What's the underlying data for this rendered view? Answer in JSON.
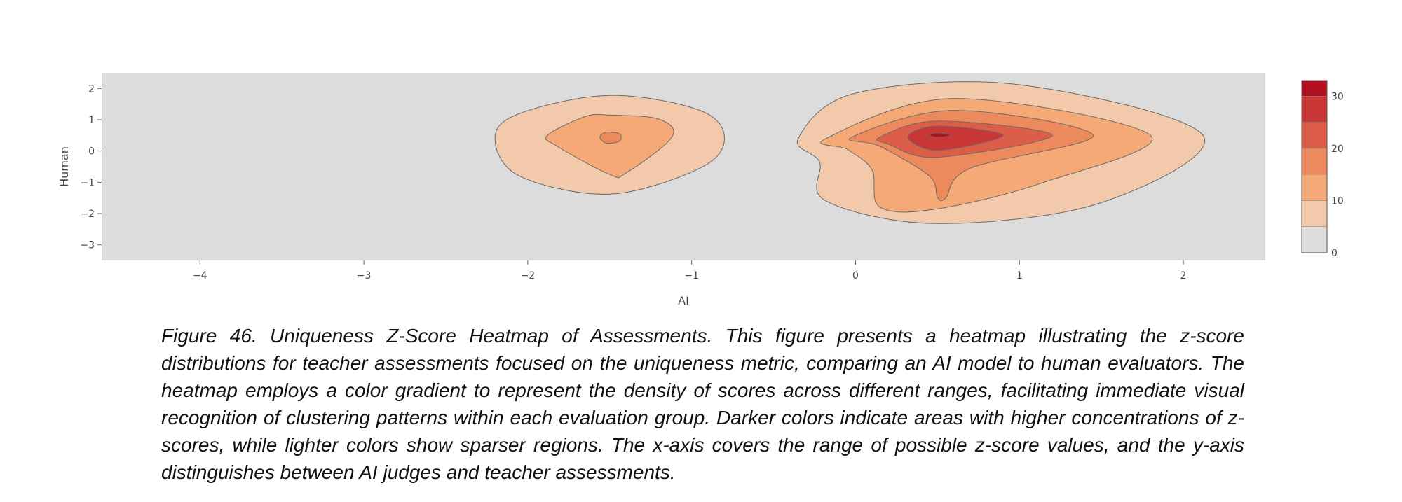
{
  "chart_data": {
    "type": "heatmap",
    "subtype": "density-contour",
    "xlabel": "AI",
    "ylabel": "Human",
    "xlim": [
      -4.6,
      2.5
    ],
    "ylim": [
      -3.5,
      2.5
    ],
    "x_ticks": [
      -4,
      -3,
      -2,
      -1,
      0,
      1,
      2
    ],
    "y_ticks": [
      2,
      1,
      0,
      -1,
      -2,
      -3
    ],
    "x_tick_labels": [
      "−4",
      "−3",
      "−2",
      "−1",
      "0",
      "1",
      "2"
    ],
    "y_tick_labels": [
      "2",
      "1",
      "0",
      "−1",
      "−2",
      "−3"
    ],
    "colorscale": {
      "range": [
        0,
        33
      ],
      "ticks": [
        30,
        20,
        10,
        0
      ],
      "tick_labels": [
        "30",
        "20",
        "10",
        "0"
      ],
      "bands": [
        {
          "from": 0,
          "to": 5,
          "color": "#dcdcdc"
        },
        {
          "from": 5,
          "to": 10,
          "color": "#f2c9aa"
        },
        {
          "from": 10,
          "to": 15,
          "color": "#f4a977"
        },
        {
          "from": 15,
          "to": 20,
          "color": "#ec8a5e"
        },
        {
          "from": 20,
          "to": 25,
          "color": "#dd5e48"
        },
        {
          "from": 25,
          "to": 30,
          "color": "#c93636"
        },
        {
          "from": 30,
          "to": 33,
          "color": "#b20f1f"
        }
      ]
    },
    "background_color": "#dcdcdc",
    "clusters": [
      {
        "peak": {
          "x": -1.5,
          "y": 0.45
        },
        "contours": [
          {
            "level": 5,
            "points": [
              [
                -2.2,
                0.4
              ],
              [
                -2.05,
                1.2
              ],
              [
                -1.5,
                1.78
              ],
              [
                -0.95,
                1.3
              ],
              [
                -0.8,
                0.4
              ],
              [
                -0.95,
                -0.55
              ],
              [
                -1.5,
                -1.38
              ],
              [
                -2.05,
                -0.8
              ]
            ]
          },
          {
            "level": 10,
            "points": [
              [
                -1.88,
                0.5
              ],
              [
                -1.65,
                1.1
              ],
              [
                -1.5,
                1.15
              ],
              [
                -1.2,
                1.02
              ],
              [
                -1.12,
                0.45
              ],
              [
                -1.4,
                -0.7
              ],
              [
                -1.5,
                -0.75
              ],
              [
                -1.82,
                0.15
              ]
            ]
          },
          {
            "level": 15,
            "points": [
              [
                -1.56,
                0.45
              ],
              [
                -1.52,
                0.6
              ],
              [
                -1.44,
                0.55
              ],
              [
                -1.44,
                0.32
              ],
              [
                -1.52,
                0.25
              ]
            ]
          }
        ]
      },
      {
        "peak": {
          "x": 0.5,
          "y": 0.5
        },
        "contours": [
          {
            "level": 5,
            "points": [
              [
                -0.35,
                0.4
              ],
              [
                0.0,
                1.85
              ],
              [
                1.0,
                2.12
              ],
              [
                2.12,
                0.5
              ],
              [
                1.5,
                -1.65
              ],
              [
                0.5,
                -2.32
              ],
              [
                -0.18,
                -1.6
              ],
              [
                -0.22,
                -0.35
              ]
            ]
          },
          {
            "level": 10,
            "points": [
              [
                -0.18,
                0.4
              ],
              [
                0.6,
                1.68
              ],
              [
                1.8,
                0.5
              ],
              [
                1.15,
                -1.0
              ],
              [
                0.5,
                -1.85
              ],
              [
                0.15,
                -1.8
              ],
              [
                0.1,
                -0.6
              ],
              [
                -0.05,
                0.05
              ]
            ]
          },
          {
            "level": 15,
            "points": [
              [
                -0.02,
                0.45
              ],
              [
                0.6,
                1.3
              ],
              [
                1.45,
                0.5
              ],
              [
                0.7,
                -0.55
              ],
              [
                0.55,
                -1.5
              ],
              [
                0.5,
                -1.48
              ],
              [
                0.45,
                -0.8
              ],
              [
                0.15,
                0.15
              ]
            ]
          },
          {
            "level": 20,
            "points": [
              [
                0.15,
                0.45
              ],
              [
                0.5,
                0.96
              ],
              [
                1.2,
                0.5
              ],
              [
                0.5,
                -0.2
              ],
              [
                0.2,
                0.22
              ]
            ]
          },
          {
            "level": 25,
            "points": [
              [
                0.32,
                0.45
              ],
              [
                0.5,
                0.8
              ],
              [
                0.9,
                0.5
              ],
              [
                0.5,
                0.02
              ]
            ]
          },
          {
            "level": 30,
            "points": [
              [
                0.45,
                0.5
              ],
              [
                0.5,
                0.58
              ],
              [
                0.58,
                0.5
              ],
              [
                0.5,
                0.44
              ]
            ]
          }
        ]
      }
    ]
  },
  "caption": "Figure 46. Uniqueness Z-Score Heatmap of Assessments. This figure presents a heatmap illustrating the z-score distributions for teacher assessments focused on the uniqueness metric, comparing an AI model to human evaluators. The heatmap employs a color gradient to represent the density of scores across different ranges, facilitating immediate visual recognition of clustering patterns within each evaluation group. Darker colors indicate areas with higher concentrations of z-scores, while lighter colors show sparser regions. The x-axis covers the range of possible z-score values, and the y-axis distinguishes between AI judges and teacher assessments."
}
